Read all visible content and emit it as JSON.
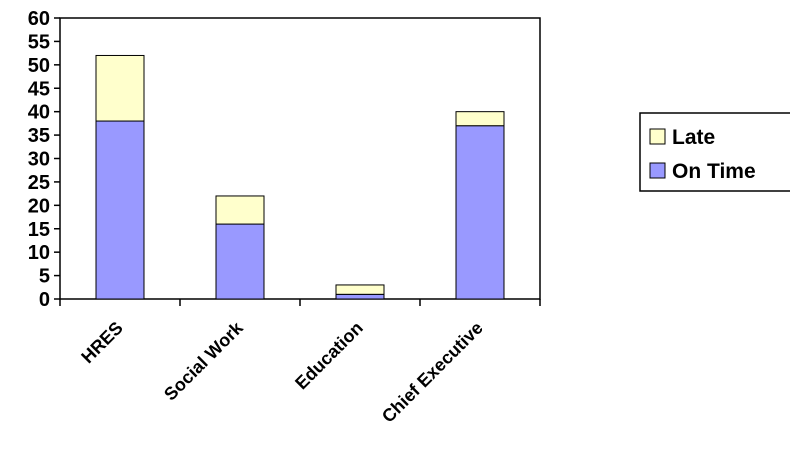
{
  "chart_data": {
    "type": "bar",
    "stacked": true,
    "categories": [
      "HRES",
      "Social Work",
      "Education",
      "Chief Executive"
    ],
    "series": [
      {
        "name": "On Time",
        "values": [
          38,
          16,
          1,
          37
        ],
        "color": "#9999ff"
      },
      {
        "name": "Late",
        "values": [
          14,
          6,
          2,
          3
        ],
        "color": "#ffffcc"
      }
    ],
    "ylim": [
      0,
      60
    ],
    "yticks": [
      0,
      5,
      10,
      15,
      20,
      25,
      30,
      35,
      40,
      45,
      50,
      55,
      60
    ],
    "title": "",
    "xlabel": "",
    "ylabel": "",
    "grid": false,
    "legend": {
      "placement": "right",
      "entries": [
        "Late",
        "On Time"
      ]
    }
  }
}
